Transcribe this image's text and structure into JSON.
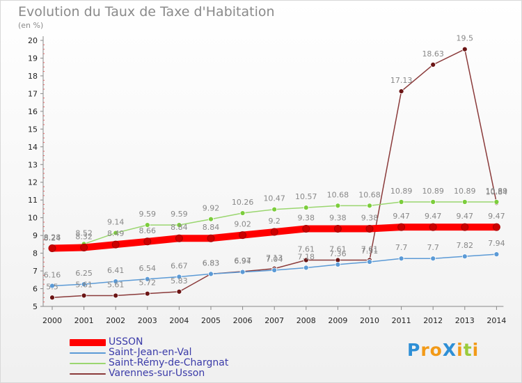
{
  "title": "Evolution du Taux de Taxe d'Habitation",
  "unit_label": "(en %)",
  "logo": {
    "text": "ProXiti",
    "letters": [
      "P",
      "r",
      "o",
      "X",
      "i",
      "t",
      "i"
    ],
    "colors": [
      "#2e8fd6",
      "#f29a18",
      "#f29a18",
      "#2e8fd6",
      "#f29a18",
      "#9acb3c",
      "#f29a18"
    ]
  },
  "chart_data": {
    "type": "line",
    "title": "Evolution du Taux de Taxe d'Habitation",
    "ylabel": "(en %)",
    "xlabel": "",
    "ylim": [
      5,
      20
    ],
    "yticks": [
      5,
      6,
      7,
      8,
      9,
      10,
      11,
      12,
      13,
      14,
      15,
      16,
      17,
      18,
      19,
      20
    ],
    "x": [
      "2000",
      "2001",
      "2002",
      "2003",
      "2004",
      "2005",
      "2006",
      "2007",
      "2008",
      "2009",
      "2010",
      "2011",
      "2012",
      "2013",
      "2014"
    ],
    "grid": false,
    "legend_position": "bottom-left",
    "series": [
      {
        "name": "USSON",
        "color": "#ff0000",
        "marker": "#cc0000",
        "emphasis": true,
        "values": [
          8.28,
          8.32,
          8.49,
          8.66,
          8.84,
          8.84,
          9.02,
          9.2,
          9.38,
          9.38,
          9.38,
          9.47,
          9.47,
          9.47,
          9.47
        ]
      },
      {
        "name": "Saint-Jean-en-Val",
        "color": "#5b9ad6",
        "marker": "#5b9ad6",
        "values": [
          6.16,
          6.25,
          6.41,
          6.54,
          6.67,
          6.83,
          6.94,
          7.04,
          7.18,
          7.36,
          7.51,
          7.7,
          7.7,
          7.82,
          7.94
        ]
      },
      {
        "name": "Saint-Rémy-de-Chargnat",
        "color": "#9ad66f",
        "marker": "#7ccd3c",
        "values": [
          8.24,
          8.52,
          9.14,
          9.59,
          9.59,
          9.92,
          10.26,
          10.47,
          10.57,
          10.68,
          10.68,
          10.89,
          10.89,
          10.89,
          10.89
        ]
      },
      {
        "name": "Varennes-sur-Usson",
        "color": "#8a3a3a",
        "marker": "#6b1515",
        "values": [
          5.5,
          5.61,
          5.61,
          5.72,
          5.83,
          6.83,
          6.97,
          7.13,
          7.61,
          7.61,
          7.61,
          17.13,
          18.63,
          19.5,
          10.84
        ]
      }
    ]
  }
}
